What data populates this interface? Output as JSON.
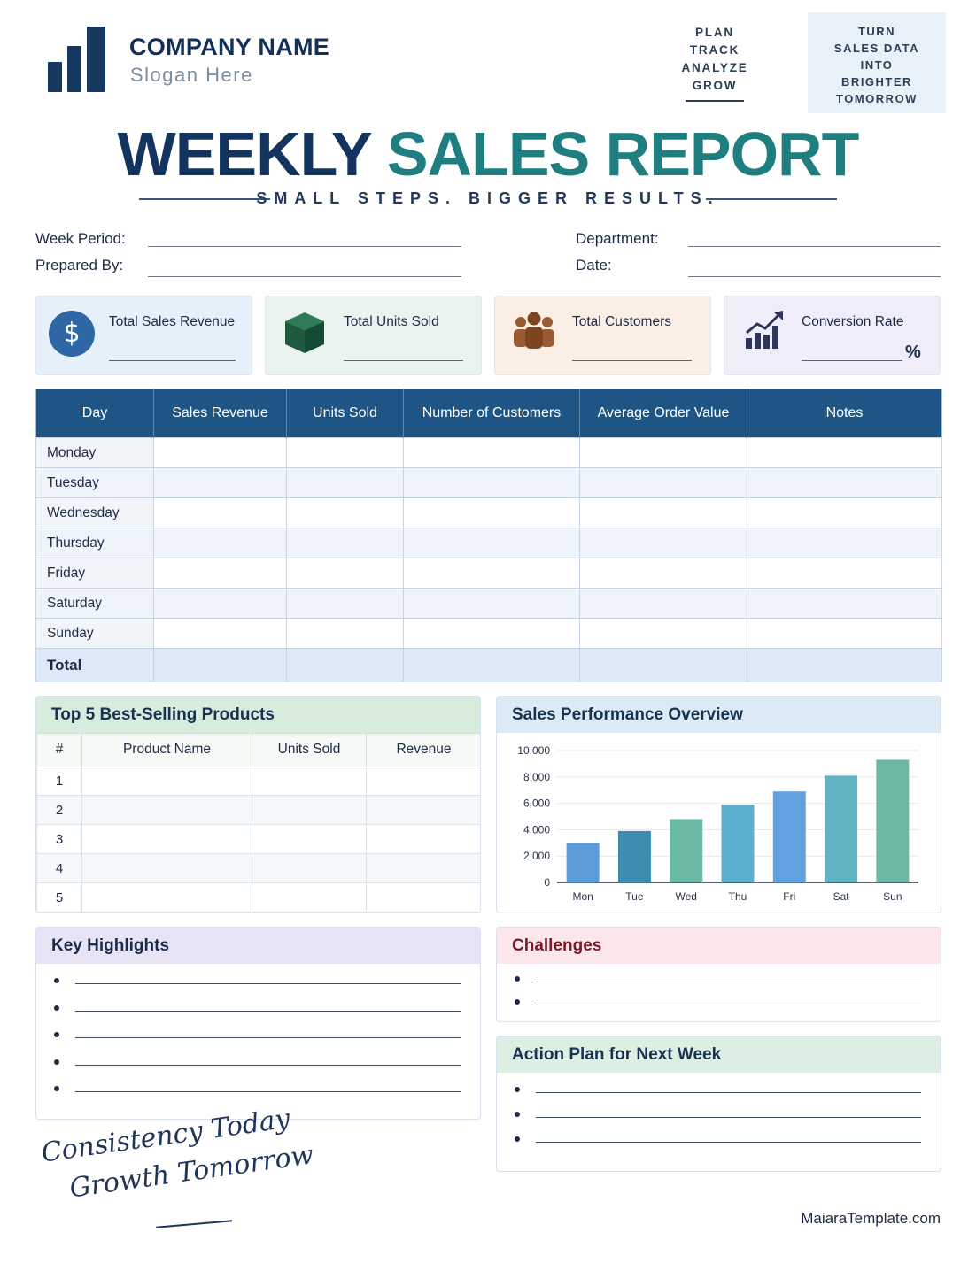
{
  "header": {
    "company_name": "COMPANY NAME",
    "slogan": "Slogan Here",
    "motto": [
      "PLAN",
      "TRACK",
      "ANALYZE",
      "GROW"
    ],
    "tagline": [
      "TURN",
      "SALES DATA",
      "INTO",
      "BRIGHTER",
      "TOMORROW"
    ],
    "logo_icon": "bar-chart-logo-icon"
  },
  "title": {
    "part1": "WEEKLY",
    "part2": "SALES REPORT",
    "subtitle": "SMALL STEPS. BIGGER RESULTS."
  },
  "fields": {
    "week_period": "Week Period:",
    "prepared_by": "Prepared By:",
    "department": "Department:",
    "date": "Date:"
  },
  "kpis": [
    {
      "label": "Total Sales Revenue",
      "icon": "dollar-icon",
      "suffix": ""
    },
    {
      "label": "Total Units Sold",
      "icon": "box-icon",
      "suffix": ""
    },
    {
      "label": "Total Customers",
      "icon": "customers-icon",
      "suffix": ""
    },
    {
      "label": "Conversion Rate",
      "icon": "growth-chart-icon",
      "suffix": "%"
    }
  ],
  "daily_table": {
    "headers": [
      "Day",
      "Sales Revenue",
      "Units Sold",
      "Number of Customers",
      "Average Order Value",
      "Notes"
    ],
    "days": [
      "Monday",
      "Tuesday",
      "Wednesday",
      "Thursday",
      "Friday",
      "Saturday",
      "Sunday"
    ],
    "total_label": "Total"
  },
  "top_products": {
    "title": "Top 5 Best-Selling Products",
    "headers": [
      "#",
      "Product Name",
      "Units Sold",
      "Revenue"
    ],
    "rows": [
      "1",
      "2",
      "3",
      "4",
      "5"
    ]
  },
  "chart_data": {
    "type": "bar",
    "title": "Sales Performance Overview",
    "categories": [
      "Mon",
      "Tue",
      "Wed",
      "Thu",
      "Fri",
      "Sat",
      "Sun"
    ],
    "values": [
      3000,
      3900,
      4800,
      5900,
      6900,
      8100,
      9300
    ],
    "ylim": [
      0,
      10000
    ],
    "yticks": [
      "10,000",
      "8,000",
      "6,000",
      "4,000",
      "2,000",
      "0"
    ],
    "colors": [
      "#5b9bd8",
      "#3c8db0",
      "#6bb9a4",
      "#5ab0cd",
      "#62a1e0",
      "#5fb3c3",
      "#6cb8a4"
    ],
    "grid": true,
    "xlabel": "",
    "ylabel": ""
  },
  "sections": {
    "highlights": "Key Highlights",
    "challenges": "Challenges",
    "action_plan": "Action Plan for Next Week"
  },
  "footer": {
    "script_line1": "Consistency Today",
    "script_line2": "Growth Tomorrow",
    "website": "MaiaraTemplate.com"
  }
}
